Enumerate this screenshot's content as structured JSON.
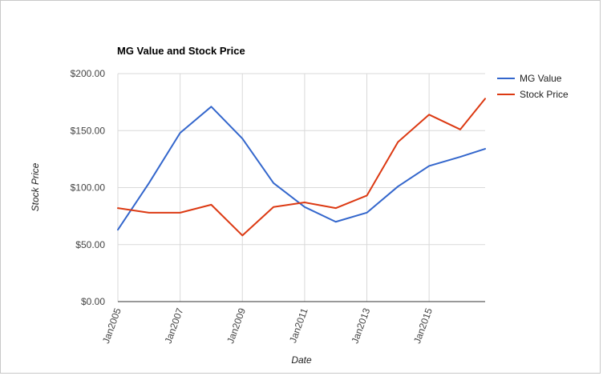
{
  "chart_data": {
    "type": "line",
    "title": "MG Value and Stock Price",
    "xlabel": "Date",
    "ylabel": "Stock Price",
    "x_tick_labels": [
      "Jan2005",
      "Jan2007",
      "Jan2009",
      "Jan2011",
      "Jan2013",
      "Jan2015"
    ],
    "y_tick_labels": [
      "$0.00",
      "$50.00",
      "$100.00",
      "$150.00",
      "$200.00"
    ],
    "y_ticks": [
      0,
      50,
      100,
      150,
      200
    ],
    "ylim": [
      0,
      200
    ],
    "x": [
      2005,
      2006,
      2007,
      2008,
      2009,
      2010,
      2011,
      2012,
      2013,
      2014,
      2015,
      2016,
      2016.8
    ],
    "series": [
      {
        "name": "MG Value",
        "color": "#3366cc",
        "values": [
          63,
          104,
          148,
          171,
          143,
          104,
          83,
          70,
          78,
          101,
          119,
          127,
          134
        ]
      },
      {
        "name": "Stock Price",
        "color": "#dc3912",
        "values": [
          82,
          78,
          78,
          85,
          58,
          83,
          87,
          82,
          93,
          140,
          164,
          151,
          178
        ]
      }
    ],
    "grid": true,
    "legend_position": "right"
  }
}
